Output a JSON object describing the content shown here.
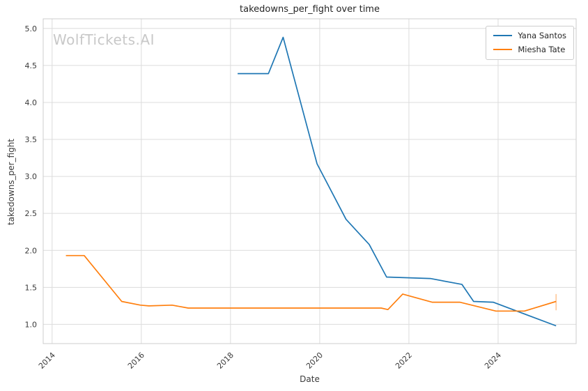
{
  "title": "takedowns_per_fight over time",
  "watermark": "WolfTickets.AI",
  "axes": {
    "xlabel": "Date",
    "ylabel": "takedowns_per_fight"
  },
  "colors": {
    "yana_santos": "#1f77b4",
    "miesha_tate": "#ff7f0e",
    "grid": "#dcdcdc",
    "frame": "#cccccc",
    "tick_text": "#3a3a3a",
    "title_text": "#262626",
    "watermark_text": "#c8c8c8"
  },
  "chart_data": {
    "type": "line",
    "title": "takedowns_per_fight over time",
    "xlabel": "Date",
    "ylabel": "takedowns_per_fight",
    "grid": true,
    "legend_position": "upper right",
    "xlim": [
      2013.8,
      2025.75
    ],
    "ylim": [
      0.74,
      5.13
    ],
    "x_ticks": [
      2014,
      2016,
      2018,
      2020,
      2022,
      2024
    ],
    "y_ticks": [
      1.0,
      1.5,
      2.0,
      2.5,
      3.0,
      3.5,
      4.0,
      4.5,
      5.0
    ],
    "series": [
      {
        "name": "Yana Santos",
        "color": "#1f77b4",
        "points": [
          [
            2018.16,
            4.39
          ],
          [
            2018.85,
            4.39
          ],
          [
            2019.18,
            4.88
          ],
          [
            2019.94,
            3.17
          ],
          [
            2020.59,
            2.42
          ],
          [
            2021.11,
            2.08
          ],
          [
            2021.5,
            1.64
          ],
          [
            2022.48,
            1.62
          ],
          [
            2023.19,
            1.54
          ],
          [
            2023.45,
            1.31
          ],
          [
            2023.89,
            1.3
          ],
          [
            2025.3,
            0.98
          ]
        ]
      },
      {
        "name": "Miesha Tate",
        "color": "#ff7f0e",
        "points": [
          [
            2014.31,
            1.93
          ],
          [
            2014.72,
            1.93
          ],
          [
            2015.56,
            1.31
          ],
          [
            2015.98,
            1.26
          ],
          [
            2016.17,
            1.25
          ],
          [
            2016.69,
            1.26
          ],
          [
            2017.05,
            1.22
          ],
          [
            2021.38,
            1.22
          ],
          [
            2021.53,
            1.2
          ],
          [
            2021.86,
            1.41
          ],
          [
            2022.52,
            1.3
          ],
          [
            2023.14,
            1.3
          ],
          [
            2023.95,
            1.18
          ],
          [
            2024.59,
            1.18
          ],
          [
            2025.3,
            1.31
          ]
        ],
        "end_whisker": {
          "x": 2025.3,
          "y_low": 1.19,
          "y_high": 1.41
        }
      }
    ]
  }
}
